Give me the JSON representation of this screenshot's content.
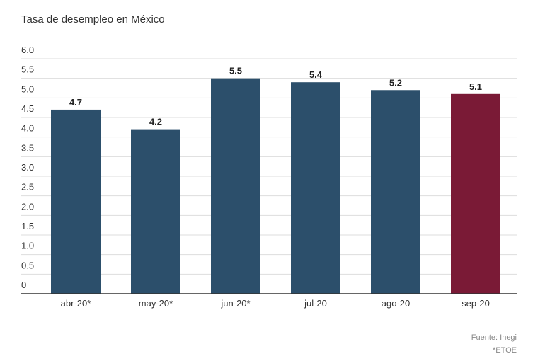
{
  "chart_data": {
    "type": "bar",
    "title": "Tasa de desempleo en México",
    "categories": [
      "abr-20*",
      "may-20*",
      "jun-20*",
      "jul-20",
      "ago-20",
      "sep-20"
    ],
    "values": [
      4.7,
      4.2,
      5.5,
      5.4,
      5.2,
      5.1
    ],
    "colors": [
      "#2c4f6b",
      "#2c4f6b",
      "#2c4f6b",
      "#2c4f6b",
      "#2c4f6b",
      "#7a1a36"
    ],
    "ylim": [
      0,
      6
    ],
    "yticks": [
      0,
      0.5,
      {
        "value": 1,
        "label": "1.0"
      },
      1.5,
      {
        "value": 2,
        "label": "2.0"
      },
      2.5,
      {
        "value": 3,
        "label": "3.0"
      },
      3.5,
      {
        "value": 4,
        "label": "4.0"
      },
      4.5,
      {
        "value": 5,
        "label": "5.0"
      },
      5.5,
      {
        "value": 6,
        "label": "6.0"
      }
    ],
    "grid": true,
    "source": "Fuente: Inegi",
    "note": "*ETOE"
  }
}
